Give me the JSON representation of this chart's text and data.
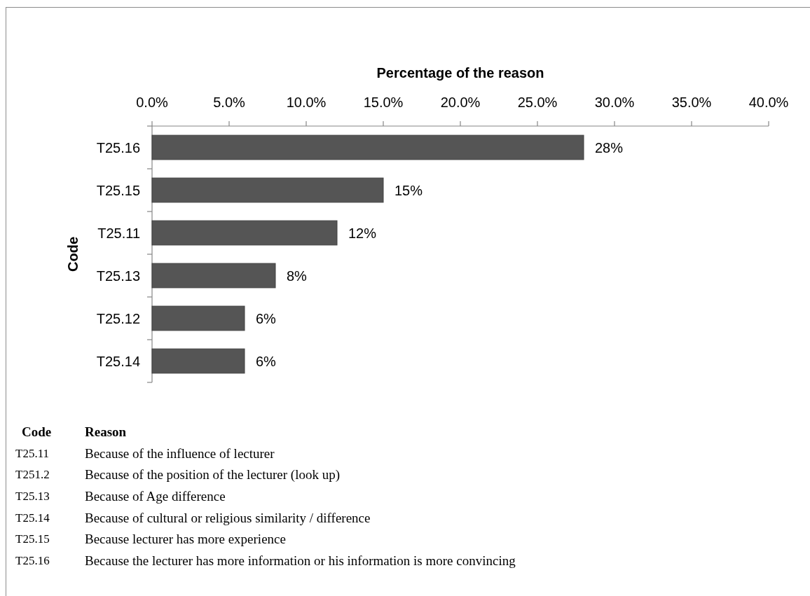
{
  "chart_data": {
    "type": "bar",
    "orientation": "horizontal",
    "xlabel": "Percentage of the reason",
    "ylabel": "Code",
    "categories": [
      "T25.16",
      "T25.15",
      "T25.11",
      "T25.13",
      "T25.12",
      "T25.14"
    ],
    "values": [
      28,
      15,
      12,
      8,
      6,
      6
    ],
    "value_labels": [
      "28%",
      "15%",
      "12%",
      "8%",
      "6%",
      "6%"
    ],
    "color": "#555555",
    "xlim": [
      0,
      40
    ],
    "xticks": [
      {
        "value": 0,
        "label": "0.0%"
      },
      {
        "value": 5,
        "label": "5.0%"
      },
      {
        "value": 10,
        "label": "10.0%"
      },
      {
        "value": 15,
        "label": "15.0%"
      },
      {
        "value": 20,
        "label": "20.0%"
      },
      {
        "value": 25,
        "label": "25.0%"
      },
      {
        "value": 30,
        "label": "30.0%"
      },
      {
        "value": 35,
        "label": "35.0%"
      },
      {
        "value": 40,
        "label": "40.0%"
      }
    ],
    "annotations": [
      "Code",
      "Reason",
      "T25.11",
      "Because of the influence of lecturer",
      "T251.2",
      "Because of the position of the lecturer (look up)",
      "T25.13",
      "Because of Age difference",
      "T25.14",
      "Because of cultural or religious similarity / difference",
      "T25.15",
      "Because lecturer has more experience",
      "T25.16",
      "Because the lecturer has more information or his information is more convincing"
    ]
  }
}
